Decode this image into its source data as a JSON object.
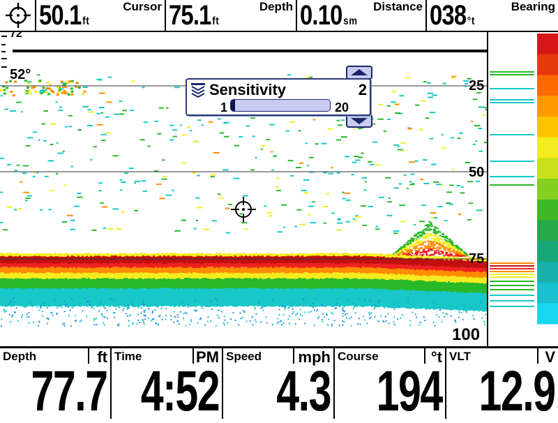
{
  "topbar": {
    "cursor": {
      "value": "50.1",
      "unit": "ft",
      "label": "Cursor"
    },
    "depth": {
      "value": "75.1",
      "unit": "ft",
      "label": "Depth"
    },
    "distance": {
      "value": "0.10",
      "unit": "sm",
      "label": "Distance"
    },
    "bearing": {
      "value": "038",
      "unit": "°t",
      "label": "Bearing"
    }
  },
  "sonar": {
    "temperature": "52°",
    "scale_top": "72",
    "depth_labels": [
      "25",
      "50",
      "75",
      "100"
    ],
    "colors": {
      "strong": "#c01010",
      "red": "#ee2222",
      "orange": "#ff8c00",
      "yellow": "#f4ec20",
      "green": "#28b828",
      "cyan": "#18c8c8",
      "blue": "#2090e0"
    }
  },
  "sensitivity": {
    "title": "Sensitivity",
    "value": "2",
    "min_label": "1",
    "max_label": "20",
    "level": 0.02,
    "icon": "sensitivity-icon"
  },
  "bottombar": {
    "depth": {
      "label": "Depth",
      "unit": "ft",
      "value": "77.7"
    },
    "time": {
      "label": "Time",
      "unit": "PM",
      "value": "4:52"
    },
    "speed": {
      "label": "Speed",
      "unit": "mph",
      "value": "4.3"
    },
    "course": {
      "label": "Course",
      "unit": "°t",
      "value": "194"
    },
    "vlt": {
      "label": "VLT",
      "unit": "V",
      "value": "12.9"
    }
  }
}
